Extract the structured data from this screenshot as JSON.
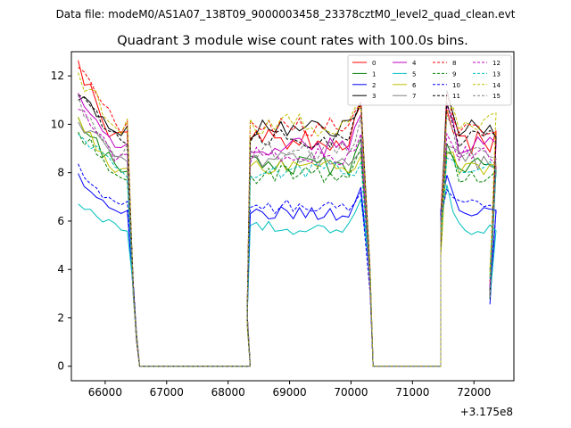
{
  "chart_data": {
    "type": "line",
    "suptitle": "Data file: modeM0/AS1A07_138T09_9000003458_23378cztM0_level2_quad_clean.evt",
    "title": "Quadrant 3 module wise count rates with 100.0s bins.",
    "xlabel": "",
    "ylabel": "",
    "x_offset_label": "+3.175e8",
    "xlim": [
      65450,
      72650
    ],
    "ylim": [
      -0.6,
      13.0
    ],
    "xticks": [
      66000,
      67000,
      68000,
      69000,
      70000,
      71000,
      72000
    ],
    "xtick_labels": [
      "66000",
      "67000",
      "68000",
      "69000",
      "70000",
      "71000",
      "72000"
    ],
    "yticks": [
      0,
      2,
      4,
      6,
      8,
      10,
      12
    ],
    "ytick_labels": [
      "0",
      "2",
      "4",
      "6",
      "8",
      "10",
      "12"
    ],
    "grid": false,
    "legend_position": "top-right",
    "legend_columns": 4,
    "segments": [
      {
        "start": 65560,
        "count": 9
      },
      {
        "start": 66460,
        "count": 19
      },
      {
        "start": 68360,
        "count": 19
      },
      {
        "start": 70260,
        "count": 12
      },
      {
        "start": 71460,
        "count": 9
      }
    ],
    "series": [
      {
        "name": "0",
        "color": "#ff0000",
        "style": "solid",
        "base": 9.3,
        "start": 12.3,
        "gap": 0.0,
        "amp": 0.5,
        "seed": 1,
        "peak": 10.8,
        "peak2": 10.6
      },
      {
        "name": "1",
        "color": "#008000",
        "style": "solid",
        "base": 8.3,
        "start": 10.0,
        "gap": 0.0,
        "amp": 0.4,
        "seed": 2,
        "peak": 9.4,
        "peak2": 9.2
      },
      {
        "name": "2",
        "color": "#0000ff",
        "style": "solid",
        "base": 6.3,
        "start": 7.8,
        "gap": 0.0,
        "amp": 0.3,
        "seed": 3,
        "peak": 7.4,
        "peak2": 7.9
      },
      {
        "name": "3",
        "color": "#000000",
        "style": "solid",
        "base": 9.8,
        "start": 11.2,
        "gap": 0.0,
        "amp": 0.4,
        "seed": 4,
        "peak": 10.9,
        "peak2": 11.4
      },
      {
        "name": "4",
        "color": "#bf00bf",
        "style": "solid",
        "base": 9.1,
        "start": 11.0,
        "gap": 0.0,
        "amp": 0.4,
        "seed": 5,
        "peak": 10.4,
        "peak2": 10.8
      },
      {
        "name": "5",
        "color": "#00bfbf",
        "style": "solid",
        "base": 5.7,
        "start": 6.9,
        "gap": 0.0,
        "amp": 0.3,
        "seed": 6,
        "peak": 6.9,
        "peak2": 7.5
      },
      {
        "name": "6",
        "color": "#bfbf00",
        "style": "solid",
        "base": 8.2,
        "start": 10.1,
        "gap": 0.0,
        "amp": 0.4,
        "seed": 7,
        "peak": 8.7,
        "peak2": 8.8
      },
      {
        "name": "7",
        "color": "#808080",
        "style": "solid",
        "base": 8.5,
        "start": 10.2,
        "gap": 0.0,
        "amp": 0.4,
        "seed": 8,
        "peak": 8.9,
        "peak2": 9.1
      },
      {
        "name": "8",
        "color": "#ff0000",
        "style": "dashed",
        "base": 9.9,
        "start": 12.4,
        "gap": 0.0,
        "amp": 0.4,
        "seed": 9,
        "peak": 10.9,
        "peak2": 11.3
      },
      {
        "name": "9",
        "color": "#008000",
        "style": "dashed",
        "base": 7.9,
        "start": 9.7,
        "gap": 0.0,
        "amp": 0.4,
        "seed": 10,
        "peak": 9.0,
        "peak2": 8.9
      },
      {
        "name": "10",
        "color": "#0000ff",
        "style": "dashed",
        "base": 6.6,
        "start": 8.2,
        "gap": 0.0,
        "amp": 0.3,
        "seed": 11,
        "peak": 7.2,
        "peak2": 7.3
      },
      {
        "name": "11",
        "color": "#000000",
        "style": "dashed",
        "base": 9.4,
        "start": 11.1,
        "gap": 0.0,
        "amp": 0.4,
        "seed": 12,
        "peak": 10.9,
        "peak2": 10.9
      },
      {
        "name": "12",
        "color": "#bf00bf",
        "style": "dashed",
        "base": 8.7,
        "start": 10.6,
        "gap": 0.0,
        "amp": 0.4,
        "seed": 13,
        "peak": 9.6,
        "peak2": 9.6
      },
      {
        "name": "13",
        "color": "#00bfbf",
        "style": "dashed",
        "base": 8.1,
        "start": 9.8,
        "gap": 0.0,
        "amp": 0.4,
        "seed": 14,
        "peak": 8.4,
        "peak2": 8.6
      },
      {
        "name": "14",
        "color": "#bfbf00",
        "style": "dashed",
        "base": 10.0,
        "start": 11.9,
        "gap": 0.0,
        "amp": 0.5,
        "seed": 15,
        "peak": 10.7,
        "peak2": 10.5
      },
      {
        "name": "15",
        "color": "#808080",
        "style": "dashed",
        "base": 8.9,
        "start": 10.9,
        "gap": 0.0,
        "amp": 0.4,
        "seed": 16,
        "peak": 10.3,
        "peak2": 10.4
      }
    ]
  }
}
